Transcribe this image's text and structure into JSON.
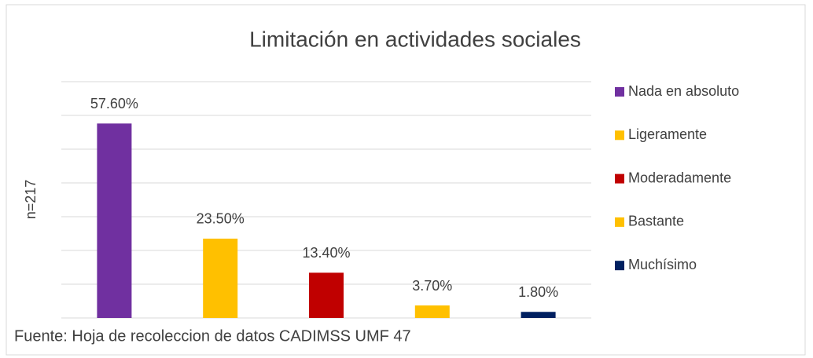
{
  "chart_data": {
    "type": "bar",
    "title": "Limitación en actividades sociales",
    "ylabel": "n=217",
    "categories": [
      "Nada en absoluto",
      "Ligeramente",
      "Moderadamente",
      "Bastante",
      "Muchísimo"
    ],
    "values": [
      57.6,
      23.5,
      13.4,
      3.7,
      1.8
    ],
    "value_labels": [
      "57.60%",
      "23.50%",
      "13.40%",
      "3.70%",
      "1.80%"
    ],
    "colors": [
      "#7030a0",
      "#ffc000",
      "#c00000",
      "#ffc000",
      "#002060"
    ],
    "ylim": [
      0,
      70
    ],
    "yticks": [
      0,
      10,
      20,
      30,
      40,
      50,
      60,
      70
    ],
    "grid": true,
    "legend": "right",
    "source": "Fuente: Hoja de recoleccion de datos CADIMSS UMF 47"
  }
}
